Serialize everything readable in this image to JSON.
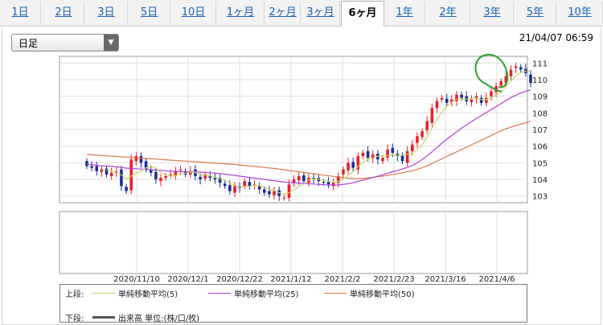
{
  "tabs": [
    {
      "label": "1日",
      "active": false
    },
    {
      "label": "2日",
      "active": false
    },
    {
      "label": "3日",
      "active": false
    },
    {
      "label": "5日",
      "active": false
    },
    {
      "label": "10日",
      "active": false
    },
    {
      "label": "1ヶ月",
      "active": false
    },
    {
      "label": "2ヶ月",
      "active": false
    },
    {
      "label": "3ヶ月",
      "active": false
    },
    {
      "label": "6ヶ月",
      "active": true
    },
    {
      "label": "1年",
      "active": false
    },
    {
      "label": "2年",
      "active": false
    },
    {
      "label": "3年",
      "active": false
    },
    {
      "label": "5年",
      "active": false
    },
    {
      "label": "10年",
      "active": false
    }
  ],
  "select": {
    "value": "日足"
  },
  "timestamp": "21/04/07 06:59",
  "legend": {
    "upper_label": "上段:",
    "lower_label": "下段:",
    "ma5": "単純移動平均(5)",
    "ma25": "単純移動平均(25)",
    "ma50": "単純移動平均(50)",
    "volume": "出来高 単位:(株/口/枚)"
  },
  "colors": {
    "up": "#e8202a",
    "down": "#1a2f9c",
    "ma5": "#c8d468",
    "ma25": "#b040d8",
    "ma50": "#e07848",
    "volume": "#555555",
    "annotation": "#2e9c2e"
  },
  "chart_data": {
    "type": "candlestick",
    "x_tick_labels": [
      "2020/11/10",
      "2020/12/1",
      "2020/12/22",
      "2021/1/12",
      "2021/2/2",
      "2021/2/23",
      "2021/3/16",
      "2021/4/6"
    ],
    "y_ticks": [
      103,
      104,
      105,
      106,
      107,
      108,
      109,
      110,
      111
    ],
    "ylim": [
      102.6,
      111.4
    ],
    "close": [
      104.8,
      104.7,
      104.5,
      104.6,
      104.3,
      104.4,
      104.5,
      103.6,
      103.3,
      105.2,
      105.4,
      105.0,
      104.6,
      104.4,
      104.0,
      104.1,
      104.2,
      104.3,
      104.5,
      104.6,
      104.3,
      104.5,
      104.2,
      104.0,
      104.3,
      104.1,
      104.0,
      103.8,
      103.6,
      103.3,
      103.6,
      103.5,
      103.9,
      103.6,
      103.7,
      103.4,
      103.2,
      103.1,
      103.3,
      103.0,
      102.9,
      103.7,
      104.0,
      104.2,
      103.9,
      104.1,
      104.0,
      103.9,
      103.8,
      103.7,
      103.8,
      104.2,
      104.6,
      105.0,
      104.7,
      105.4,
      105.6,
      105.3,
      105.5,
      105.2,
      105.3,
      105.8,
      105.6,
      105.4,
      105.1,
      105.7,
      106.1,
      106.6,
      106.9,
      107.5,
      108.3,
      108.7,
      108.9,
      108.6,
      108.8,
      109.1,
      108.9,
      108.7,
      108.8,
      109.0,
      108.6,
      108.9,
      109.3,
      109.6,
      109.9,
      110.2,
      110.6,
      110.8,
      110.6,
      110.4,
      109.8
    ],
    "ma5": [
      null,
      null,
      null,
      null,
      104.58,
      104.5,
      104.46,
      104.28,
      104.02,
      104.2,
      104.4,
      104.5,
      104.7,
      104.8,
      104.68,
      104.42,
      104.26,
      104.2,
      104.22,
      104.34,
      104.38,
      104.44,
      104.42,
      104.32,
      104.26,
      104.22,
      104.12,
      104.04,
      103.96,
      103.76,
      103.66,
      103.56,
      103.58,
      103.58,
      103.66,
      103.62,
      103.56,
      103.4,
      103.34,
      103.2,
      103.1,
      103.2,
      103.38,
      103.56,
      103.74,
      103.98,
      104.04,
      104.02,
      103.94,
      103.9,
      103.84,
      103.88,
      104.02,
      104.26,
      104.46,
      104.78,
      105.06,
      105.2,
      105.3,
      105.4,
      105.38,
      105.42,
      105.48,
      105.46,
      105.44,
      105.52,
      105.58,
      105.78,
      106.08,
      106.56,
      107.08,
      107.6,
      108.06,
      108.4,
      108.66,
      108.82,
      108.86,
      108.82,
      108.86,
      108.9,
      108.8,
      108.8,
      108.92,
      109.08,
      109.26,
      109.58,
      109.92,
      110.22,
      110.42,
      110.52,
      110.48
    ],
    "ma25": [
      104.9,
      104.88,
      104.85,
      104.82,
      104.8,
      104.78,
      104.76,
      104.72,
      104.68,
      104.66,
      104.64,
      104.62,
      104.6,
      104.58,
      104.56,
      104.54,
      104.52,
      104.5,
      104.49,
      104.48,
      104.47,
      104.46,
      104.45,
      104.44,
      104.42,
      104.4,
      104.38,
      104.35,
      104.32,
      104.28,
      104.24,
      104.2,
      104.16,
      104.12,
      104.08,
      104.04,
      104.0,
      103.96,
      103.92,
      103.88,
      103.84,
      103.82,
      103.8,
      103.78,
      103.76,
      103.74,
      103.72,
      103.7,
      103.68,
      103.67,
      103.66,
      103.67,
      103.7,
      103.74,
      103.8,
      103.88,
      103.96,
      104.04,
      104.12,
      104.2,
      104.28,
      104.38,
      104.46,
      104.54,
      104.62,
      104.72,
      104.84,
      105.0,
      105.2,
      105.42,
      105.66,
      105.92,
      106.18,
      106.42,
      106.64,
      106.86,
      107.08,
      107.28,
      107.48,
      107.66,
      107.84,
      108.02,
      108.2,
      108.38,
      108.56,
      108.74,
      108.92,
      109.06,
      109.2,
      109.3,
      109.38
    ],
    "ma50": [
      105.5,
      105.48,
      105.46,
      105.44,
      105.42,
      105.4,
      105.38,
      105.36,
      105.34,
      105.32,
      105.3,
      105.28,
      105.26,
      105.24,
      105.22,
      105.2,
      105.18,
      105.16,
      105.14,
      105.12,
      105.1,
      105.08,
      105.06,
      105.04,
      105.02,
      105.0,
      104.98,
      104.96,
      104.94,
      104.92,
      104.9,
      104.87,
      104.84,
      104.81,
      104.78,
      104.75,
      104.72,
      104.69,
      104.66,
      104.62,
      104.58,
      104.54,
      104.5,
      104.46,
      104.42,
      104.38,
      104.34,
      104.3,
      104.26,
      104.22,
      104.18,
      104.14,
      104.1,
      104.08,
      104.06,
      104.06,
      104.07,
      104.09,
      104.12,
      104.16,
      104.2,
      104.25,
      104.3,
      104.35,
      104.4,
      104.46,
      104.52,
      104.6,
      104.7,
      104.82,
      104.96,
      105.1,
      105.24,
      105.38,
      105.52,
      105.66,
      105.8,
      105.94,
      106.08,
      106.22,
      106.36,
      106.5,
      106.64,
      106.78,
      106.92,
      107.04,
      107.14,
      107.24,
      107.32,
      107.4,
      107.5
    ]
  }
}
